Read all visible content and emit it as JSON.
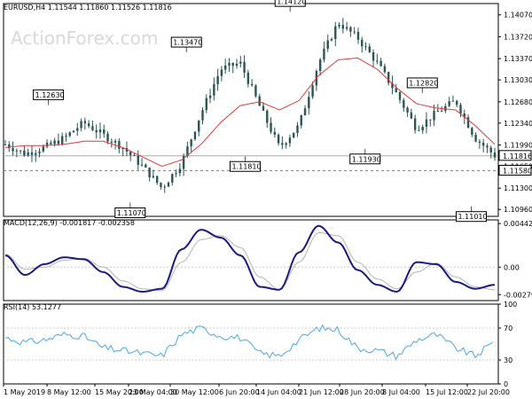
{
  "watermark": "ActionForex.com",
  "chart_data": [
    {
      "type": "candlestick",
      "title": "EURUSD,H4  1.11544 1.11860 1.11526 1.11816",
      "ylim": [
        1.1085,
        1.1425
      ],
      "yticks": [
        "1.14070",
        "1.13720",
        "1.13370",
        "1.13030",
        "1.12680",
        "1.12340",
        "1.11990",
        "1.11650",
        "1.11300",
        "1.10960"
      ],
      "last_price": "1.11816",
      "ref_price": "1.11580",
      "price_x": [
        0,
        4,
        8,
        12,
        16,
        20,
        24,
        28,
        32,
        36,
        40,
        44,
        48,
        52,
        56,
        60,
        64,
        68,
        72,
        76,
        80,
        84,
        88,
        92,
        96,
        100
      ],
      "price_close": [
        1.12,
        1.1185,
        1.1195,
        1.121,
        1.1235,
        1.1215,
        1.1195,
        1.1165,
        1.113,
        1.117,
        1.125,
        1.132,
        1.133,
        1.126,
        1.1195,
        1.123,
        1.133,
        1.1395,
        1.137,
        1.133,
        1.128,
        1.1225,
        1.125,
        1.127,
        1.121,
        1.1182
      ],
      "ma_close": [
        1.1195,
        1.1198,
        1.1198,
        1.12,
        1.1205,
        1.1205,
        1.1195,
        1.118,
        1.1165,
        1.1175,
        1.12,
        1.1235,
        1.1262,
        1.1268,
        1.1255,
        1.127,
        1.131,
        1.1335,
        1.1338,
        1.132,
        1.129,
        1.1265,
        1.1258,
        1.1255,
        1.123,
        1.12
      ],
      "annotations": [
        {
          "label": "1.12630",
          "x": 8.8,
          "y": 1.1263,
          "pos": "above"
        },
        {
          "label": "1.11070",
          "x": 25.5,
          "y": 1.1107,
          "pos": "below"
        },
        {
          "label": "1.13470",
          "x": 37.0,
          "y": 1.1347,
          "pos": "above"
        },
        {
          "label": "1.11810",
          "x": 49.0,
          "y": 1.1181,
          "pos": "below"
        },
        {
          "label": "1.14120",
          "x": 58.2,
          "y": 1.1412,
          "pos": "above"
        },
        {
          "label": "1.11930",
          "x": 73.5,
          "y": 1.1193,
          "pos": "below"
        },
        {
          "label": "1.12820",
          "x": 85.2,
          "y": 1.1282,
          "pos": "above"
        },
        {
          "label": "1.11010",
          "x": 95.2,
          "y": 1.1101,
          "pos": "below"
        }
      ]
    },
    {
      "type": "line",
      "title": "MACD(12,26,9) -0.001817 -0.002358",
      "ylim": [
        -0.0034,
        0.0048
      ],
      "yticks": [
        "0.004426",
        "0.00",
        "-0.002795"
      ],
      "x": [
        0,
        4,
        8,
        12,
        16,
        20,
        24,
        28,
        32,
        36,
        40,
        44,
        48,
        52,
        56,
        60,
        64,
        68,
        72,
        76,
        80,
        84,
        88,
        92,
        96,
        100
      ],
      "macd": [
        0.0012,
        -0.0008,
        0.0003,
        0.001,
        0.0008,
        -0.0005,
        -0.002,
        -0.0025,
        -0.0022,
        0.0018,
        0.0038,
        0.003,
        0.0012,
        -0.002,
        -0.0023,
        0.0015,
        0.0042,
        0.0025,
        -0.0003,
        -0.0018,
        -0.0025,
        0.0005,
        0.0003,
        -0.0015,
        -0.0022,
        -0.0018
      ],
      "signal": [
        0.0013,
        -0.0002,
        0.0,
        0.0007,
        0.0009,
        0.0,
        -0.0014,
        -0.0022,
        -0.0024,
        0.0005,
        0.0028,
        0.0032,
        0.002,
        -0.001,
        -0.0023,
        0.0005,
        0.0035,
        0.0032,
        0.0005,
        -0.0012,
        -0.0022,
        -0.0005,
        0.0004,
        -0.001,
        -0.002,
        -0.0023
      ]
    },
    {
      "type": "line",
      "title": "RSI(14) 53.1277",
      "ylim": [
        0,
        100
      ],
      "yticks": [
        "100",
        "70",
        "30",
        "0"
      ],
      "x": [
        0,
        4,
        8,
        12,
        16,
        20,
        24,
        28,
        32,
        36,
        40,
        44,
        48,
        52,
        56,
        60,
        64,
        68,
        72,
        76,
        80,
        84,
        88,
        92,
        96,
        100
      ],
      "values": [
        58,
        52,
        55,
        62,
        60,
        45,
        42,
        38,
        35,
        62,
        70,
        60,
        58,
        38,
        35,
        55,
        70,
        68,
        45,
        42,
        35,
        55,
        62,
        45,
        35,
        53
      ]
    }
  ],
  "x_axis_labels": [
    "1 May 2019",
    "8 May 12:00",
    "15 May 20:00",
    "23 May 04:00",
    "30 May 12:00",
    "6 Jun 20:00",
    "14 Jun 04:00",
    "21 Jun 12:00",
    "28 Jun 20:00",
    "8 Jul 04:00",
    "15 Jul 12:00",
    "22 Jul 20:00"
  ],
  "colors": {
    "candle": "#2a5656",
    "ma": "#e03c3c",
    "macd": "#1a1a80",
    "signal": "#b4b4b4",
    "rsi": "#4aa8e8",
    "grid": "#c8c8c8",
    "frame": "#000000"
  }
}
